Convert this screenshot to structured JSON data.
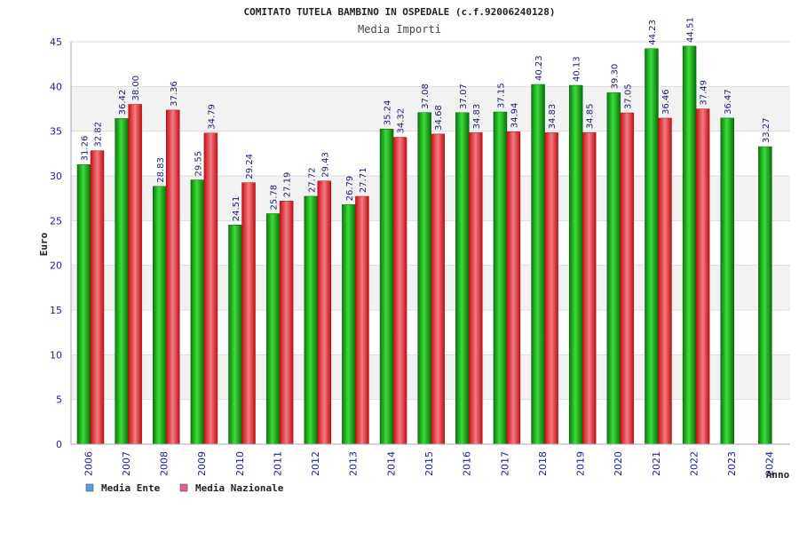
{
  "chart_data": {
    "type": "bar",
    "title": "COMITATO TUTELA BAMBINO IN OSPEDALE (c.f.92006240128)",
    "subtitle": "Media Importi",
    "ylabel": "Euro",
    "xlabel": "Anno",
    "ylim": [
      0,
      45
    ],
    "yticks": [
      0,
      5,
      10,
      15,
      20,
      25,
      30,
      35,
      40,
      45
    ],
    "categories": [
      "2006",
      "2007",
      "2008",
      "2009",
      "2010",
      "2011",
      "2012",
      "2013",
      "2014",
      "2015",
      "2016",
      "2017",
      "2018",
      "2019",
      "2020",
      "2021",
      "2022",
      "2023",
      "2024"
    ],
    "series": [
      {
        "name": "Media Ente",
        "color": "#0a9a0a",
        "values": [
          31.26,
          36.42,
          28.83,
          29.55,
          24.51,
          25.78,
          27.72,
          26.79,
          35.24,
          37.08,
          37.07,
          37.15,
          40.23,
          40.13,
          39.3,
          44.23,
          44.51,
          36.47,
          33.27
        ],
        "labels": [
          "31.26",
          "36.42",
          "28.83",
          "29.55",
          "24.51",
          "25.78",
          "27.72",
          "26.79",
          "35.24",
          "37.08",
          "37.07",
          "37.15",
          "40.23",
          "40.13",
          "39.30",
          "44.23",
          "44.51",
          "36.47",
          "33.27"
        ]
      },
      {
        "name": "Media Nazionale",
        "color": "#e01818",
        "values": [
          32.82,
          38.0,
          37.36,
          34.79,
          29.24,
          27.19,
          29.43,
          27.71,
          34.32,
          34.68,
          34.83,
          34.94,
          34.83,
          34.85,
          37.05,
          36.46,
          37.49,
          null,
          null
        ],
        "labels": [
          "32.82",
          "38.00",
          "37.36",
          "34.79",
          "29.24",
          "27.19",
          "29.43",
          "27.71",
          "34.32",
          "34.68",
          "34.83",
          "34.94",
          "34.83",
          "34.85",
          "37.05",
          "36.46",
          "37.49",
          null,
          null
        ]
      }
    ],
    "legend": {
      "placement": "bottom-left",
      "items": [
        {
          "label": "Media Ente",
          "color": "#5b9bd5"
        },
        {
          "label": "Media Nazionale",
          "color": "#e0609a"
        }
      ]
    },
    "grid": true
  }
}
